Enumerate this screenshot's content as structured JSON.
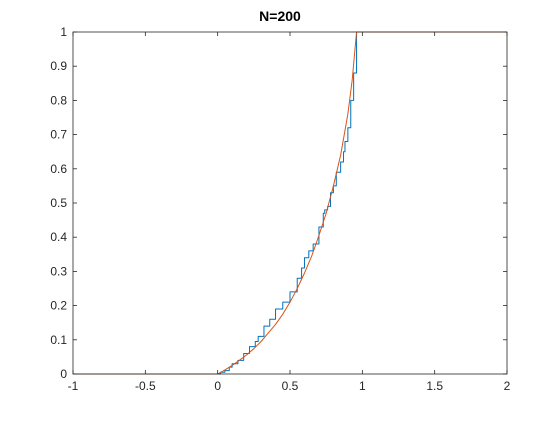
{
  "chart_data": {
    "type": "line",
    "title": "N=200",
    "xlabel": "",
    "ylabel": "",
    "xlim": [
      -1,
      2
    ],
    "ylim": [
      0,
      1
    ],
    "x_ticks": [
      -1,
      -0.5,
      0,
      0.5,
      1,
      1.5,
      2
    ],
    "x_tick_labels": [
      "-1",
      "-0.5",
      "0",
      "0.5",
      "1",
      "1.5",
      "2"
    ],
    "y_ticks": [
      0,
      0.1,
      0.2,
      0.3,
      0.4,
      0.5,
      0.6,
      0.7,
      0.8,
      0.9,
      1
    ],
    "y_tick_labels": [
      "0",
      "0.1",
      "0.2",
      "0.3",
      "0.4",
      "0.5",
      "0.6",
      "0.7",
      "0.8",
      "0.9",
      "1"
    ],
    "grid": false,
    "legend": false,
    "series": [
      {
        "color": "#0072BD",
        "style": "step",
        "x": [
          -1,
          0,
          0.02,
          0.05,
          0.08,
          0.1,
          0.14,
          0.18,
          0.22,
          0.26,
          0.28,
          0.32,
          0.36,
          0.4,
          0.45,
          0.5,
          0.55,
          0.58,
          0.6,
          0.63,
          0.66,
          0.7,
          0.73,
          0.74,
          0.76,
          0.78,
          0.8,
          0.82,
          0.85,
          0.87,
          0.88,
          0.9,
          0.92,
          0.94,
          0.96,
          2
        ],
        "y": [
          0,
          0,
          0.005,
          0.01,
          0.02,
          0.03,
          0.04,
          0.06,
          0.08,
          0.095,
          0.11,
          0.14,
          0.16,
          0.19,
          0.21,
          0.24,
          0.28,
          0.31,
          0.34,
          0.36,
          0.38,
          0.43,
          0.47,
          0.48,
          0.49,
          0.53,
          0.55,
          0.59,
          0.62,
          0.65,
          0.68,
          0.72,
          0.8,
          0.88,
          1.0,
          1.0
        ]
      },
      {
        "color": "#D95319",
        "style": "line",
        "x": [
          -1,
          0,
          0.05,
          0.1,
          0.15,
          0.2,
          0.25,
          0.3,
          0.35,
          0.4,
          0.45,
          0.5,
          0.55,
          0.6,
          0.65,
          0.7,
          0.75,
          0.8,
          0.85,
          0.9,
          0.93,
          0.96,
          2
        ],
        "y": [
          0,
          0,
          0.012,
          0.025,
          0.04,
          0.056,
          0.074,
          0.095,
          0.12,
          0.145,
          0.175,
          0.21,
          0.25,
          0.295,
          0.345,
          0.405,
          0.47,
          0.55,
          0.64,
          0.76,
          0.86,
          1.0,
          1.0
        ]
      }
    ]
  }
}
